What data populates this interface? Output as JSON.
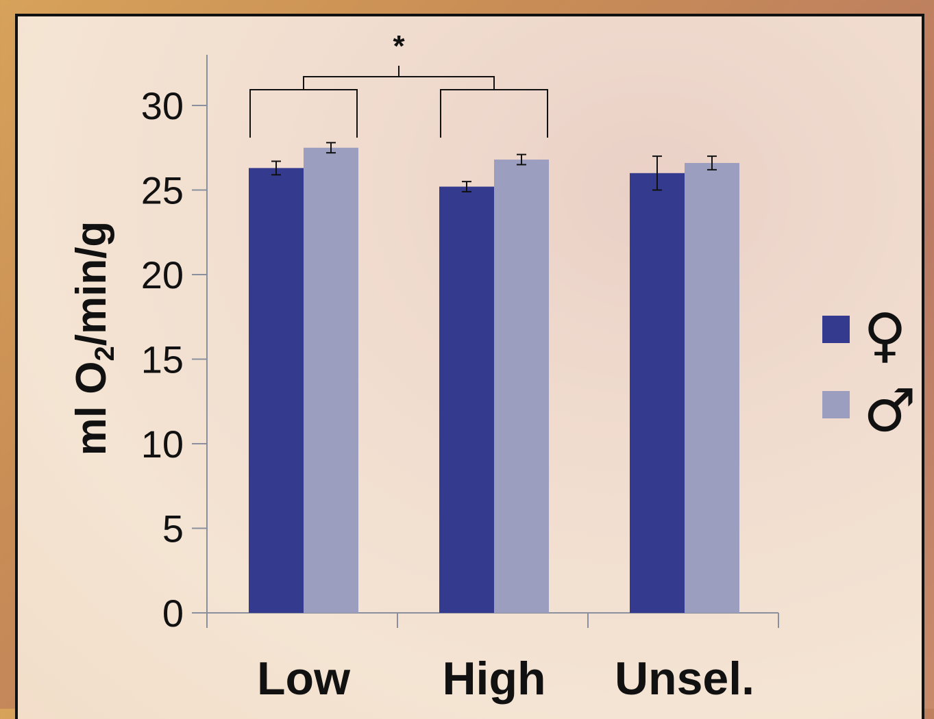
{
  "chart_data": {
    "type": "bar",
    "categories": [
      "Low",
      "High",
      "Unsel."
    ],
    "series": [
      {
        "name": "♀",
        "color": "#343a8e",
        "values": [
          26.3,
          25.2,
          26.0
        ],
        "errors": [
          0.4,
          0.3,
          1.0
        ]
      },
      {
        "name": "♂",
        "color": "#9c9ebf",
        "values": [
          27.5,
          26.8,
          26.6
        ],
        "errors": [
          0.3,
          0.3,
          0.4
        ]
      }
    ],
    "yticks": [
      "0",
      "5",
      "10",
      "15",
      "20",
      "25",
      "30"
    ],
    "ylim": [
      0,
      30
    ],
    "ylabel_main": "ml O",
    "ylabel_sub": "2",
    "ylabel_rest": "/min/g",
    "grid": false,
    "legend_position": "right",
    "annotation": {
      "text": "*",
      "between": [
        "Low",
        "High"
      ]
    }
  }
}
